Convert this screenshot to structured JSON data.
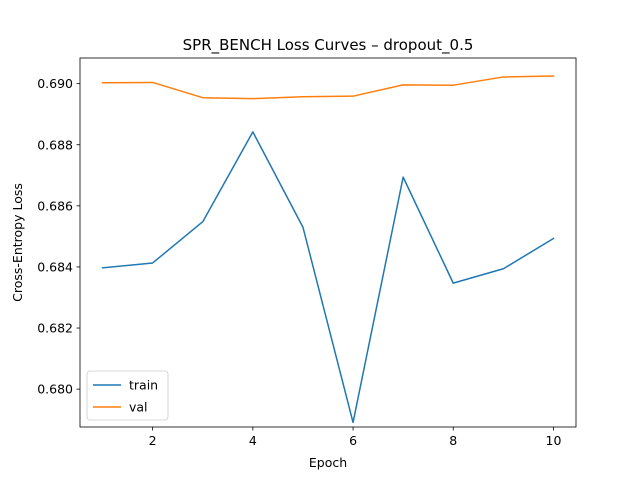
{
  "chart_data": {
    "type": "line",
    "title": "SPR_BENCH Loss Curves – dropout_0.5",
    "xlabel": "Epoch",
    "ylabel": "Cross-Entropy Loss",
    "x": [
      1,
      2,
      3,
      4,
      5,
      6,
      7,
      8,
      9,
      10
    ],
    "xlim": [
      0.55,
      10.45
    ],
    "ylim": [
      0.67876,
      0.69084
    ],
    "xticks": [
      2,
      4,
      6,
      8,
      10
    ],
    "yticks": [
      0.68,
      0.682,
      0.684,
      0.686,
      0.688,
      0.69
    ],
    "ytick_labels": [
      "0.680",
      "0.682",
      "0.684",
      "0.686",
      "0.688",
      "0.690"
    ],
    "grid": false,
    "legend": "lower-left",
    "series": [
      {
        "name": "train",
        "color": "#1f77b4",
        "values": [
          0.68397,
          0.68413,
          0.68548,
          0.68842,
          0.6853,
          0.67891,
          0.68694,
          0.68347,
          0.68394,
          0.68493
        ]
      },
      {
        "name": "val",
        "color": "#ff7f0e",
        "values": [
          0.69003,
          0.69004,
          0.68954,
          0.68951,
          0.68957,
          0.68959,
          0.68996,
          0.68995,
          0.69022,
          0.69025
        ]
      }
    ]
  }
}
